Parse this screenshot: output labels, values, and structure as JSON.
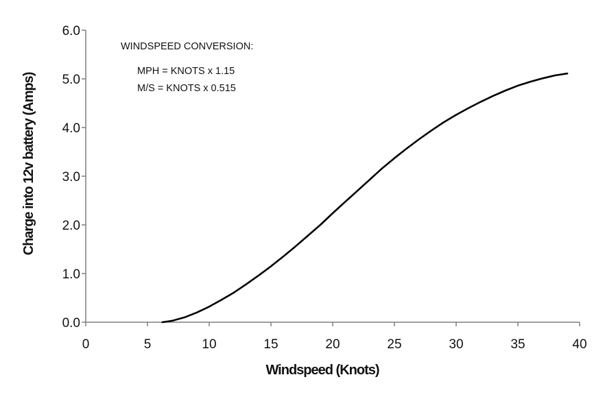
{
  "chart_data": {
    "type": "line",
    "title": "",
    "xlabel": "Windspeed (Knots)",
    "ylabel": "Charge into 12v battery (Amps)",
    "xlim": [
      0,
      40
    ],
    "ylim": [
      0,
      6
    ],
    "x_ticks": [
      "0",
      "5",
      "10",
      "15",
      "20",
      "25",
      "30",
      "35",
      "40"
    ],
    "y_ticks": [
      "0.0",
      "1.0",
      "2.0",
      "3.0",
      "4.0",
      "5.0",
      "6.0"
    ],
    "grid": false,
    "annotations": [
      "WINDSPEED CONVERSION:",
      "MPH  = KNOTS x 1.15",
      "M/S = KNOTS x 0.515"
    ],
    "series": [
      {
        "color": "#000000",
        "x": [
          6.2,
          7,
          8,
          9,
          10,
          11,
          12,
          13,
          14,
          15,
          16,
          17,
          18,
          19,
          20,
          21,
          22,
          23,
          24,
          25,
          26,
          27,
          28,
          29,
          30,
          31,
          32,
          33,
          34,
          35,
          36,
          37,
          38,
          39
        ],
        "y": [
          0.0,
          0.03,
          0.1,
          0.2,
          0.32,
          0.46,
          0.61,
          0.78,
          0.96,
          1.15,
          1.35,
          1.56,
          1.78,
          2.0,
          2.24,
          2.47,
          2.7,
          2.93,
          3.16,
          3.37,
          3.57,
          3.76,
          3.94,
          4.11,
          4.26,
          4.4,
          4.53,
          4.65,
          4.76,
          4.86,
          4.94,
          5.01,
          5.07,
          5.11
        ]
      }
    ]
  }
}
